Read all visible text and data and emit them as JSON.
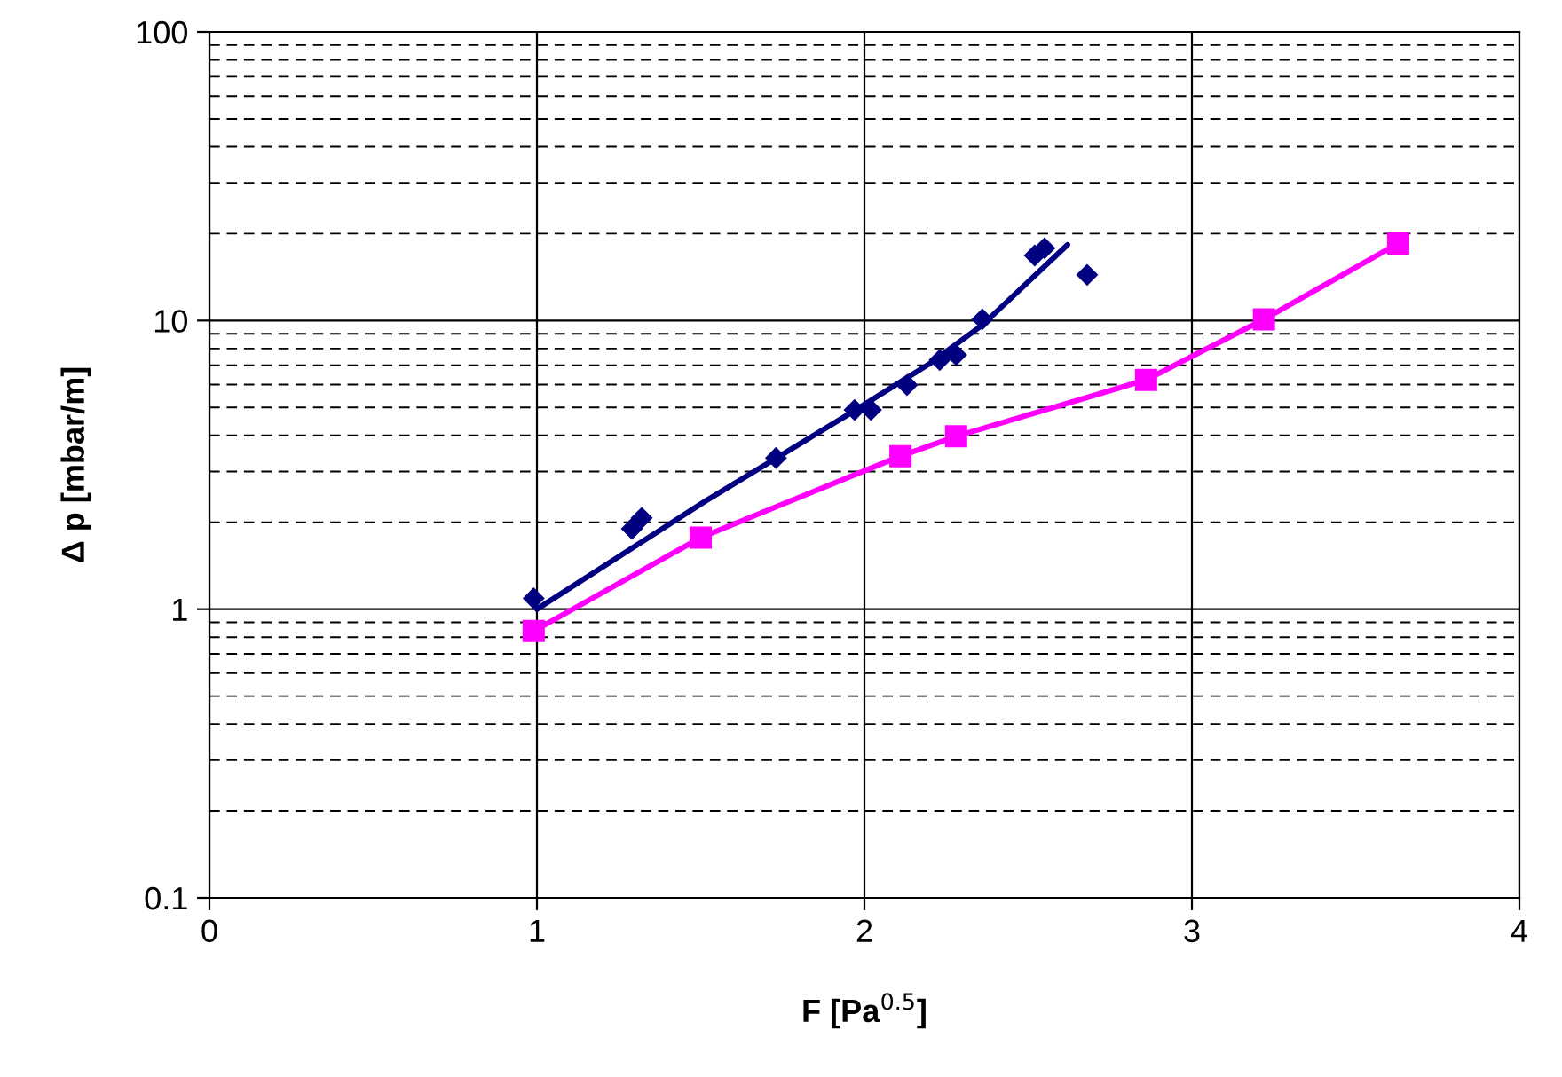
{
  "chart_data": {
    "type": "scatter",
    "xlabel": "F [Pa$^{0.5}$]",
    "ylabel": "Δ p [mbar/m]",
    "xlim": [
      0,
      4
    ],
    "xticks": [
      0,
      1,
      2,
      3,
      4
    ],
    "ylim": [
      0.1,
      100
    ],
    "yticks": [
      0.1,
      1,
      10,
      100
    ],
    "log": "y",
    "grid": true,
    "legend": false,
    "series": [
      {
        "marker": "diamond",
        "color": "#000080",
        "x": [
          0.99,
          1.29,
          1.32,
          1.73,
          1.97,
          2.02,
          2.13,
          2.23,
          2.28,
          2.36,
          2.52,
          2.55,
          2.68
        ],
        "values": [
          1.09,
          1.9,
          2.07,
          3.34,
          4.9,
          4.9,
          5.98,
          7.3,
          7.6,
          10.1,
          16.8,
          17.8,
          14.4
        ]
      },
      {
        "type": "line",
        "marker": "none",
        "color": "#000080",
        "x": [
          1.0,
          1.51,
          1.96,
          2.2,
          2.36,
          2.62
        ],
        "values": [
          1.0,
          2.35,
          4.8,
          7.1,
          9.65,
          18.3
        ]
      },
      {
        "type": "line",
        "marker": "square",
        "color": "#ff00ff",
        "x": [
          0.99,
          1.5,
          2.11,
          2.28,
          2.86,
          3.22,
          3.63
        ],
        "values": [
          0.84,
          1.77,
          3.39,
          3.97,
          6.23,
          10.1,
          18.5
        ]
      }
    ]
  }
}
